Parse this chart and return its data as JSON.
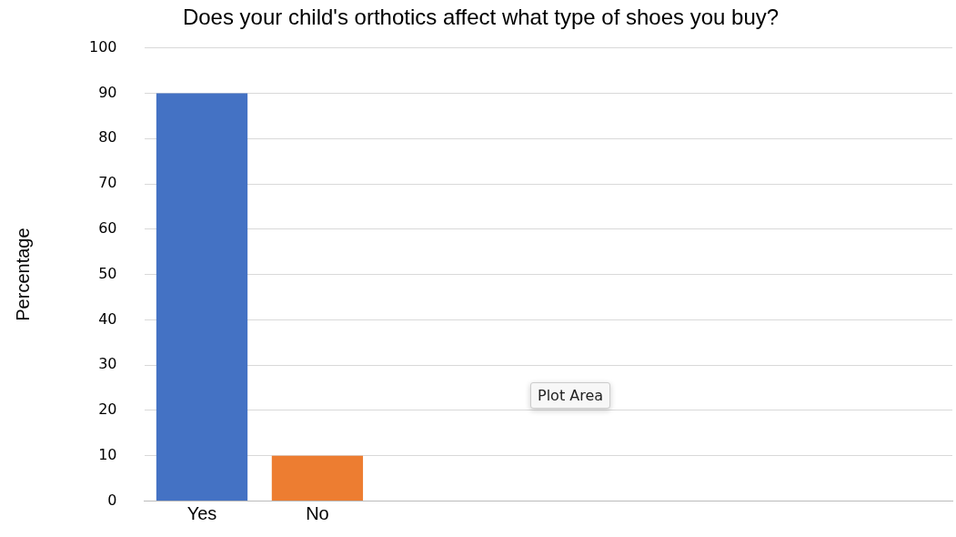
{
  "chart_data": {
    "type": "bar",
    "title": "Does your child's orthotics affect what type of shoes you buy?",
    "ylabel": "Percentage",
    "categories": [
      "Yes",
      "No",
      null,
      null,
      null,
      null,
      null
    ],
    "values": [
      90,
      10,
      null,
      null,
      null,
      null,
      null
    ],
    "colors": [
      "#4472c4",
      "#ed7d31",
      null,
      null,
      null,
      null,
      null
    ],
    "ylim": [
      0,
      100
    ],
    "yticks": [
      0,
      10,
      20,
      30,
      40,
      50,
      60,
      70,
      80,
      90,
      100
    ],
    "grid": "y",
    "legend": false,
    "annotations": [
      "Plot Area"
    ]
  }
}
